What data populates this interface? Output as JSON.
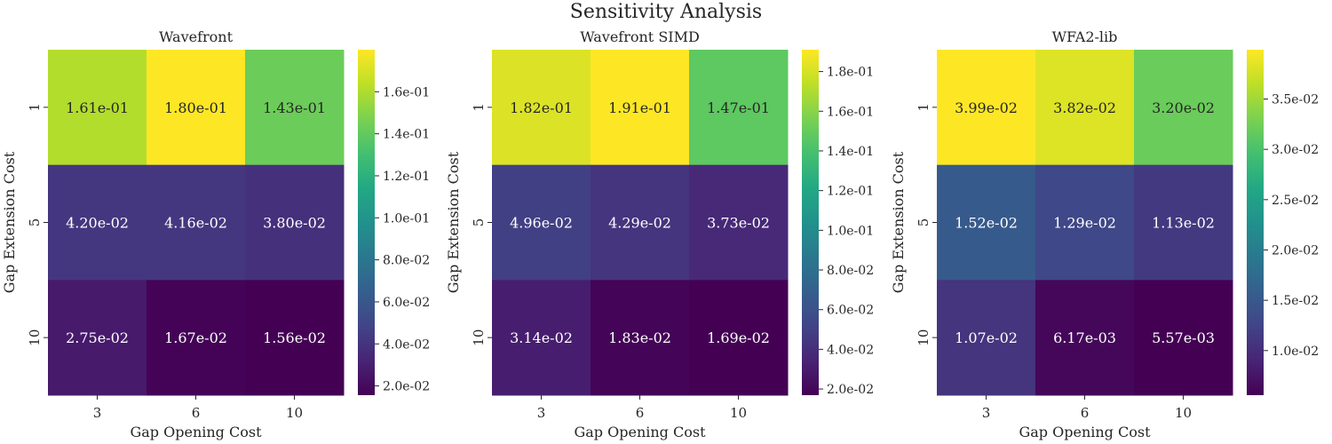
{
  "figure_title": "Sensitivity Analysis",
  "chart_data": [
    {
      "type": "heatmap",
      "title": "Wavefront",
      "xlabel": "Gap Opening Cost",
      "ylabel": "Gap Extension Cost",
      "x_categories": [
        "3",
        "6",
        "10"
      ],
      "y_categories": [
        "1",
        "5",
        "10"
      ],
      "values": [
        [
          0.161,
          0.18,
          0.143
        ],
        [
          0.042,
          0.0416,
          0.038
        ],
        [
          0.0275,
          0.0167,
          0.0156
        ]
      ],
      "annotations": [
        [
          "1.61e-01",
          "1.80e-01",
          "1.43e-01"
        ],
        [
          "4.20e-02",
          "4.16e-02",
          "3.80e-02"
        ],
        [
          "2.75e-02",
          "1.67e-02",
          "1.56e-02"
        ]
      ],
      "colormap": "viridis",
      "vmin": 0.0156,
      "vmax": 0.18,
      "colorbar_ticks": [
        0.02,
        0.04,
        0.06,
        0.08,
        0.1,
        0.12,
        0.14,
        0.16
      ],
      "colorbar_labels": [
        "2.0e-02",
        "4.0e-02",
        "6.0e-02",
        "8.0e-02",
        "1.0e-01",
        "1.2e-01",
        "1.4e-01",
        "1.6e-01"
      ]
    },
    {
      "type": "heatmap",
      "title": "Wavefront SIMD",
      "xlabel": "Gap Opening Cost",
      "ylabel": "Gap Extension Cost",
      "x_categories": [
        "3",
        "6",
        "10"
      ],
      "y_categories": [
        "1",
        "5",
        "10"
      ],
      "values": [
        [
          0.182,
          0.191,
          0.147
        ],
        [
          0.0496,
          0.0429,
          0.0373
        ],
        [
          0.0314,
          0.0183,
          0.0169
        ]
      ],
      "annotations": [
        [
          "1.82e-01",
          "1.91e-01",
          "1.47e-01"
        ],
        [
          "4.96e-02",
          "4.29e-02",
          "3.73e-02"
        ],
        [
          "3.14e-02",
          "1.83e-02",
          "1.69e-02"
        ]
      ],
      "colormap": "viridis",
      "vmin": 0.0169,
      "vmax": 0.191,
      "colorbar_ticks": [
        0.02,
        0.04,
        0.06,
        0.08,
        0.1,
        0.12,
        0.14,
        0.16,
        0.18
      ],
      "colorbar_labels": [
        "2.0e-02",
        "4.0e-02",
        "6.0e-02",
        "8.0e-02",
        "1.0e-01",
        "1.2e-01",
        "1.4e-01",
        "1.6e-01",
        "1.8e-01"
      ]
    },
    {
      "type": "heatmap",
      "title": "WFA2-lib",
      "xlabel": "Gap Opening Cost",
      "ylabel": "Gap Extension Cost",
      "x_categories": [
        "3",
        "6",
        "10"
      ],
      "y_categories": [
        "1",
        "5",
        "10"
      ],
      "values": [
        [
          0.0399,
          0.0382,
          0.032
        ],
        [
          0.0152,
          0.0129,
          0.0113
        ],
        [
          0.0107,
          0.00617,
          0.00557
        ]
      ],
      "annotations": [
        [
          "3.99e-02",
          "3.82e-02",
          "3.20e-02"
        ],
        [
          "1.52e-02",
          "1.29e-02",
          "1.13e-02"
        ],
        [
          "1.07e-02",
          "6.17e-03",
          "5.57e-03"
        ]
      ],
      "colormap": "viridis",
      "vmin": 0.00557,
      "vmax": 0.0399,
      "colorbar_ticks": [
        0.01,
        0.015,
        0.02,
        0.025,
        0.03,
        0.035
      ],
      "colorbar_labels": [
        "1.0e-02",
        "1.5e-02",
        "2.0e-02",
        "2.5e-02",
        "3.0e-02",
        "3.5e-02"
      ]
    }
  ]
}
